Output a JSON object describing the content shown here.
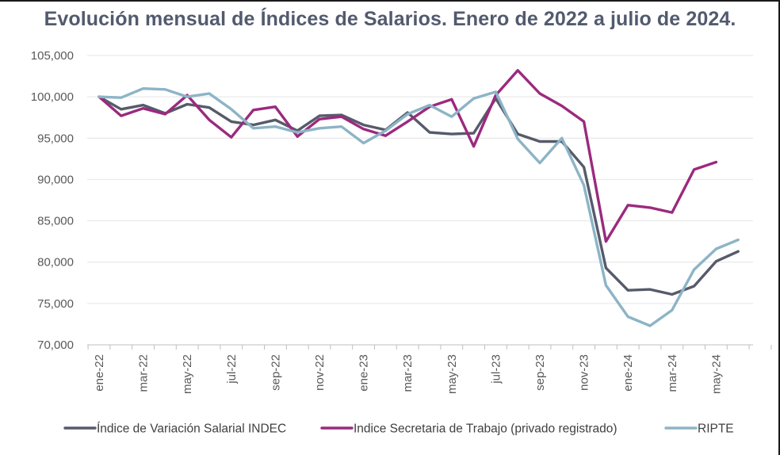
{
  "chart_data": {
    "type": "line",
    "title": "Evolución mensual de Índices de Salarios. Enero de 2022 a julio de 2024.",
    "xlabel": "",
    "ylabel": "",
    "ylim": [
      70000,
      105000
    ],
    "yticks": [
      "70,000",
      "75,000",
      "80,000",
      "85,000",
      "90,000",
      "95,000",
      "100,000",
      "105,000"
    ],
    "ytick_values": [
      70000,
      75000,
      80000,
      85000,
      90000,
      95000,
      100000,
      105000
    ],
    "x": [
      "ene-22",
      "feb-22",
      "mar-22",
      "abr-22",
      "may-22",
      "jun-22",
      "jul-22",
      "ago-22",
      "sep-22",
      "oct-22",
      "nov-22",
      "dic-22",
      "ene-23",
      "feb-23",
      "mar-23",
      "abr-23",
      "may-23",
      "jun-23",
      "jul-23",
      "ago-23",
      "sep-23",
      "oct-23",
      "nov-23",
      "dic-23",
      "ene-24",
      "feb-24",
      "mar-24",
      "abr-24",
      "may-24",
      "jun-24",
      "jul-24"
    ],
    "xtick_labels": [
      "ene-22",
      "mar-22",
      "may-22",
      "jul-22",
      "sep-22",
      "nov-22",
      "ene-23",
      "mar-23",
      "may-23",
      "jul-23",
      "sep-23",
      "nov-23",
      "ene-24",
      "mar-24",
      "may-24"
    ],
    "grid": true,
    "legend_position": "bottom",
    "series": [
      {
        "name": "Índice de Variación Salarial INDEC",
        "color": "#565b6b",
        "values": [
          100000,
          98500,
          99000,
          98000,
          99100,
          98700,
          97000,
          96600,
          97200,
          95900,
          97700,
          97800,
          96600,
          96000,
          98100,
          95700,
          95500,
          95600,
          99800,
          95500,
          94600,
          94600,
          91500,
          79300,
          76600,
          76700,
          76100,
          77100,
          80100,
          81300,
          null
        ]
      },
      {
        "name": "Indice Secretaria de Trabajo (privado registrado)",
        "color": "#9b2a7e",
        "values": [
          100000,
          97700,
          98600,
          97900,
          100200,
          97200,
          95100,
          98400,
          98800,
          95200,
          97300,
          97600,
          96100,
          95300,
          97000,
          98800,
          99700,
          94000,
          100200,
          103200,
          100400,
          98900,
          97000,
          82500,
          86900,
          86600,
          86000,
          91200,
          92100,
          null,
          null
        ]
      },
      {
        "name": "RIPTE",
        "color": "#8db4c6",
        "values": [
          100000,
          99900,
          101000,
          100900,
          100000,
          100400,
          98500,
          96200,
          96400,
          95700,
          96200,
          96400,
          94400,
          95900,
          97900,
          99000,
          97600,
          99800,
          100600,
          94900,
          92000,
          95000,
          89300,
          77200,
          73400,
          72300,
          74200,
          79100,
          81600,
          82700,
          null
        ]
      }
    ]
  }
}
